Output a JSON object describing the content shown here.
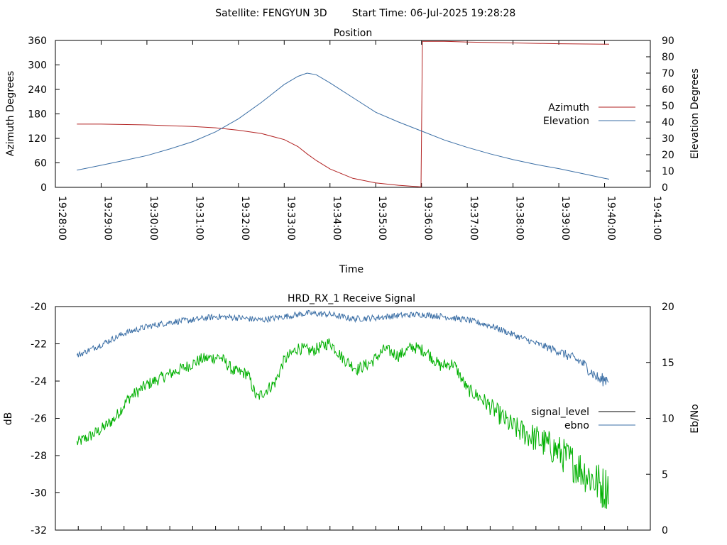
{
  "header": {
    "satellite": "Satellite: FENGYUN 3D",
    "start_time": "Start Time: 06-Jul-2025 19:28:28"
  },
  "colors": {
    "azimuth": "#b22222",
    "elevation": "#3a6ea5",
    "signal_level": "#00b000",
    "signal_level_legend": "#000000",
    "ebno": "#3a6ea5"
  },
  "chart_data": [
    {
      "type": "line",
      "title": "Position",
      "xlabel": "Time",
      "ylabel": "Azimuth Degrees",
      "y2label": "Elevation Degrees",
      "x_ticks": [
        "19:28:00",
        "19:29:00",
        "19:30:00",
        "19:31:00",
        "19:32:00",
        "19:33:00",
        "19:34:00",
        "19:35:00",
        "19:36:00",
        "19:37:00",
        "19:38:00",
        "19:39:00",
        "19:40:00",
        "19:41:00"
      ],
      "xlim_min": [
        0,
        13
      ],
      "y_ticks": [
        "0",
        "60",
        "120",
        "180",
        "240",
        "300",
        "360"
      ],
      "ylim": [
        0,
        360
      ],
      "y2_ticks": [
        "0",
        "10",
        "20",
        "30",
        "40",
        "50",
        "60",
        "70",
        "80",
        "90"
      ],
      "y2lim": [
        0,
        90
      ],
      "legend_position": "right",
      "series": [
        {
          "name": "Azimuth",
          "axis": "y",
          "x_min": [
            0.47,
            1.0,
            2.0,
            3.0,
            3.5,
            4.0,
            4.5,
            5.0,
            5.3,
            5.5,
            5.7,
            6.0,
            6.5,
            7.0,
            7.5,
            7.99,
            8.02,
            8.5,
            9.0,
            10.0,
            11.0,
            12.0,
            12.1
          ],
          "values": [
            155,
            155,
            153,
            149,
            146,
            140,
            132,
            117,
            100,
            82,
            66,
            45,
            22,
            11,
            5,
            1,
            358,
            358,
            356,
            354,
            352,
            351,
            351
          ]
        },
        {
          "name": "Elevation",
          "axis": "y2",
          "x_min": [
            0.47,
            1.0,
            1.5,
            2.0,
            2.5,
            3.0,
            3.5,
            4.0,
            4.5,
            5.0,
            5.3,
            5.5,
            5.7,
            6.0,
            6.5,
            7.0,
            7.5,
            8.0,
            8.5,
            9.0,
            9.5,
            10.0,
            10.5,
            11.0,
            11.5,
            12.0,
            12.1
          ],
          "values": [
            10.5,
            13.5,
            16.5,
            19.5,
            23.5,
            28,
            34,
            42,
            52,
            63,
            68,
            70,
            69,
            64,
            55,
            46,
            40,
            34.5,
            29,
            24.5,
            20.5,
            17,
            14,
            11.5,
            8.5,
            5.5,
            5
          ]
        }
      ]
    },
    {
      "type": "line",
      "title": "HRD_RX_1 Receive Signal",
      "xlabel": "",
      "ylabel": "dB",
      "y2label": "Eb/No",
      "y_ticks": [
        "-20",
        "-22",
        "-24",
        "-26",
        "-28",
        "-30",
        "-32"
      ],
      "ylim": [
        -32,
        -20
      ],
      "y2_ticks": [
        "0",
        "5",
        "10",
        "15",
        "20"
      ],
      "y2lim": [
        0,
        20
      ],
      "xlim_min": [
        0,
        13
      ],
      "legend_position": "right",
      "series": [
        {
          "name": "signal_level",
          "axis": "y2",
          "x_min": [
            0.47,
            0.8,
            1.0,
            1.3,
            1.6,
            2.0,
            2.4,
            2.8,
            3.2,
            3.6,
            3.9,
            4.2,
            4.4,
            4.8,
            5.0,
            5.3,
            5.6,
            6.0,
            6.3,
            6.6,
            6.9,
            7.2,
            7.5,
            7.8,
            8.1,
            8.4,
            8.7,
            9.0,
            9.3,
            9.6,
            10.0,
            10.5,
            11.0,
            11.5,
            12.0,
            12.1
          ],
          "values": [
            7.8,
            8.5,
            9.0,
            10.0,
            11.8,
            13.0,
            13.8,
            14.5,
            15.3,
            15.5,
            14.2,
            14.0,
            11.8,
            13.2,
            15.2,
            16.3,
            16.0,
            16.8,
            15.3,
            14.4,
            15.0,
            16.2,
            15.6,
            16.4,
            16.0,
            14.7,
            14.9,
            12.6,
            11.8,
            10.7,
            9.2,
            8.2,
            7.0,
            5.4,
            3.7,
            4.2
          ]
        },
        {
          "name": "ebno",
          "axis": "y2",
          "x_min": [
            0.47,
            1.0,
            1.5,
            2.0,
            2.5,
            3.0,
            3.5,
            4.0,
            4.5,
            5.0,
            5.5,
            6.0,
            6.5,
            7.0,
            7.5,
            8.0,
            8.5,
            9.0,
            9.5,
            10.0,
            10.5,
            11.0,
            11.5,
            11.9,
            12.1
          ],
          "values": [
            15.6,
            16.6,
            17.6,
            18.2,
            18.6,
            18.8,
            19.1,
            19.0,
            18.8,
            19.1,
            19.4,
            19.3,
            18.9,
            19.0,
            19.2,
            19.3,
            19.1,
            18.8,
            18.3,
            17.5,
            16.7,
            16.0,
            15.0,
            13.4,
            13.6
          ]
        }
      ]
    }
  ]
}
